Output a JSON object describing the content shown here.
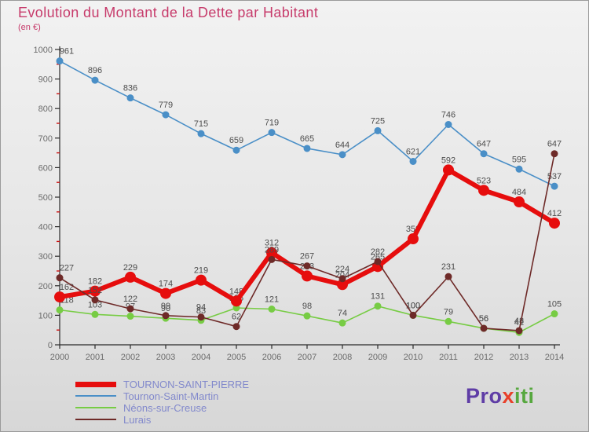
{
  "title": "Evolution du Montant de la Dette par Habitant",
  "subtitle": "(en €)",
  "colors": {
    "title": "#c73b6b",
    "axis": "#2b2b2b",
    "minor_tick": "#cc1111",
    "tick_label": "#6b6b6b",
    "data_label": "#4d4d4d",
    "legend_text": "#8289cc"
  },
  "chart_data": {
    "type": "line",
    "categories": [
      2000,
      2001,
      2002,
      2003,
      2004,
      2005,
      2006,
      2007,
      2008,
      2009,
      2010,
      2011,
      2012,
      2013,
      2014
    ],
    "ylim": [
      0,
      1000
    ],
    "yticks": [
      0,
      100,
      200,
      300,
      400,
      500,
      600,
      700,
      800,
      900,
      1000
    ],
    "grid": false,
    "legend_position": "bottom-left",
    "series": [
      {
        "name": "TOURNON-SAINT-PIERRE",
        "color": "#e60d0d",
        "thick": true,
        "values": [
          162,
          182,
          229,
          174,
          219,
          148,
          312,
          233,
          204,
          265,
          359,
          592,
          523,
          484,
          412
        ]
      },
      {
        "name": "Tournon-Saint-Martin",
        "color": "#4a8fc7",
        "thick": false,
        "values": [
          961,
          896,
          836,
          779,
          715,
          659,
          719,
          665,
          644,
          725,
          621,
          746,
          647,
          595,
          537
        ]
      },
      {
        "name": "Néons-sur-Creuse",
        "color": "#77cc44",
        "thick": false,
        "values": [
          118,
          103,
          97,
          90,
          83,
          125,
          121,
          98,
          74,
          131,
          100,
          79,
          56,
          42,
          105
        ]
      },
      {
        "name": "Lurais",
        "color": "#6e2a28",
        "thick": false,
        "values": [
          227,
          152,
          122,
          99,
          94,
          62,
          289,
          267,
          224,
          282,
          100,
          231,
          56,
          48,
          647
        ]
      }
    ]
  },
  "logo": {
    "parts": [
      {
        "text": "Pro",
        "color": "#5f3da6"
      },
      {
        "text": "x",
        "color": "#e8402a"
      },
      {
        "text": "iti",
        "color": "#57a83f"
      }
    ]
  }
}
